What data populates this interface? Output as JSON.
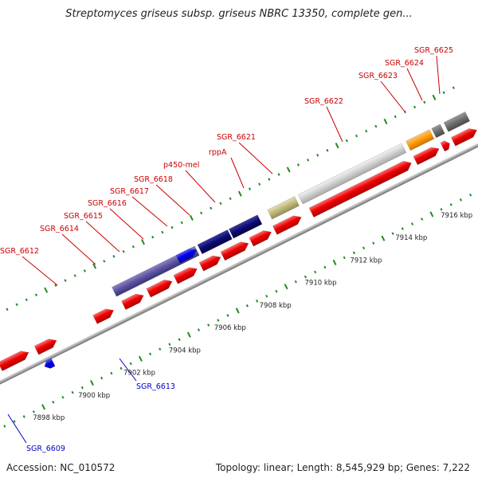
{
  "title": "Streptomyces griseus subsp. griseus NBRC 13350, complete gen...",
  "footer": {
    "accession": "Accession: NC_010572",
    "summary": "Topology: linear; Length: 8,545,929 bp; Genes: 7,222"
  },
  "scale_labels": [
    "7898 kbp",
    "7900 kbp",
    "7902 kbp",
    "7904 kbp",
    "7906 kbp",
    "7908 kbp",
    "7910 kbp",
    "7912 kbp",
    "7914 kbp",
    "7916 kbp"
  ],
  "gene_labels": [
    {
      "text": "SGR_6612",
      "color": "#cc0000"
    },
    {
      "text": "SGR_6614",
      "color": "#cc0000"
    },
    {
      "text": "SGR_6615",
      "color": "#cc0000"
    },
    {
      "text": "SGR_6616",
      "color": "#cc0000"
    },
    {
      "text": "SGR_6617",
      "color": "#cc0000"
    },
    {
      "text": "SGR_6618",
      "color": "#cc0000"
    },
    {
      "text": "p450-mel",
      "color": "#cc0000"
    },
    {
      "text": "rppA",
      "color": "#cc0000"
    },
    {
      "text": "SGR_6621",
      "color": "#cc0000"
    },
    {
      "text": "SGR_6622",
      "color": "#cc0000"
    },
    {
      "text": "SGR_6623",
      "color": "#cc0000"
    },
    {
      "text": "SGR_6624",
      "color": "#cc0000"
    },
    {
      "text": "SGR_6625",
      "color": "#cc0000"
    },
    {
      "text": "SGR_6613",
      "color": "#0000cc"
    },
    {
      "text": "SGR_6609",
      "color": "#0000cc"
    }
  ],
  "colors": {
    "forward_cds": "#ee0000",
    "reverse_cds": "#0000ee",
    "tick": "#228822",
    "backbone": "#999999"
  }
}
